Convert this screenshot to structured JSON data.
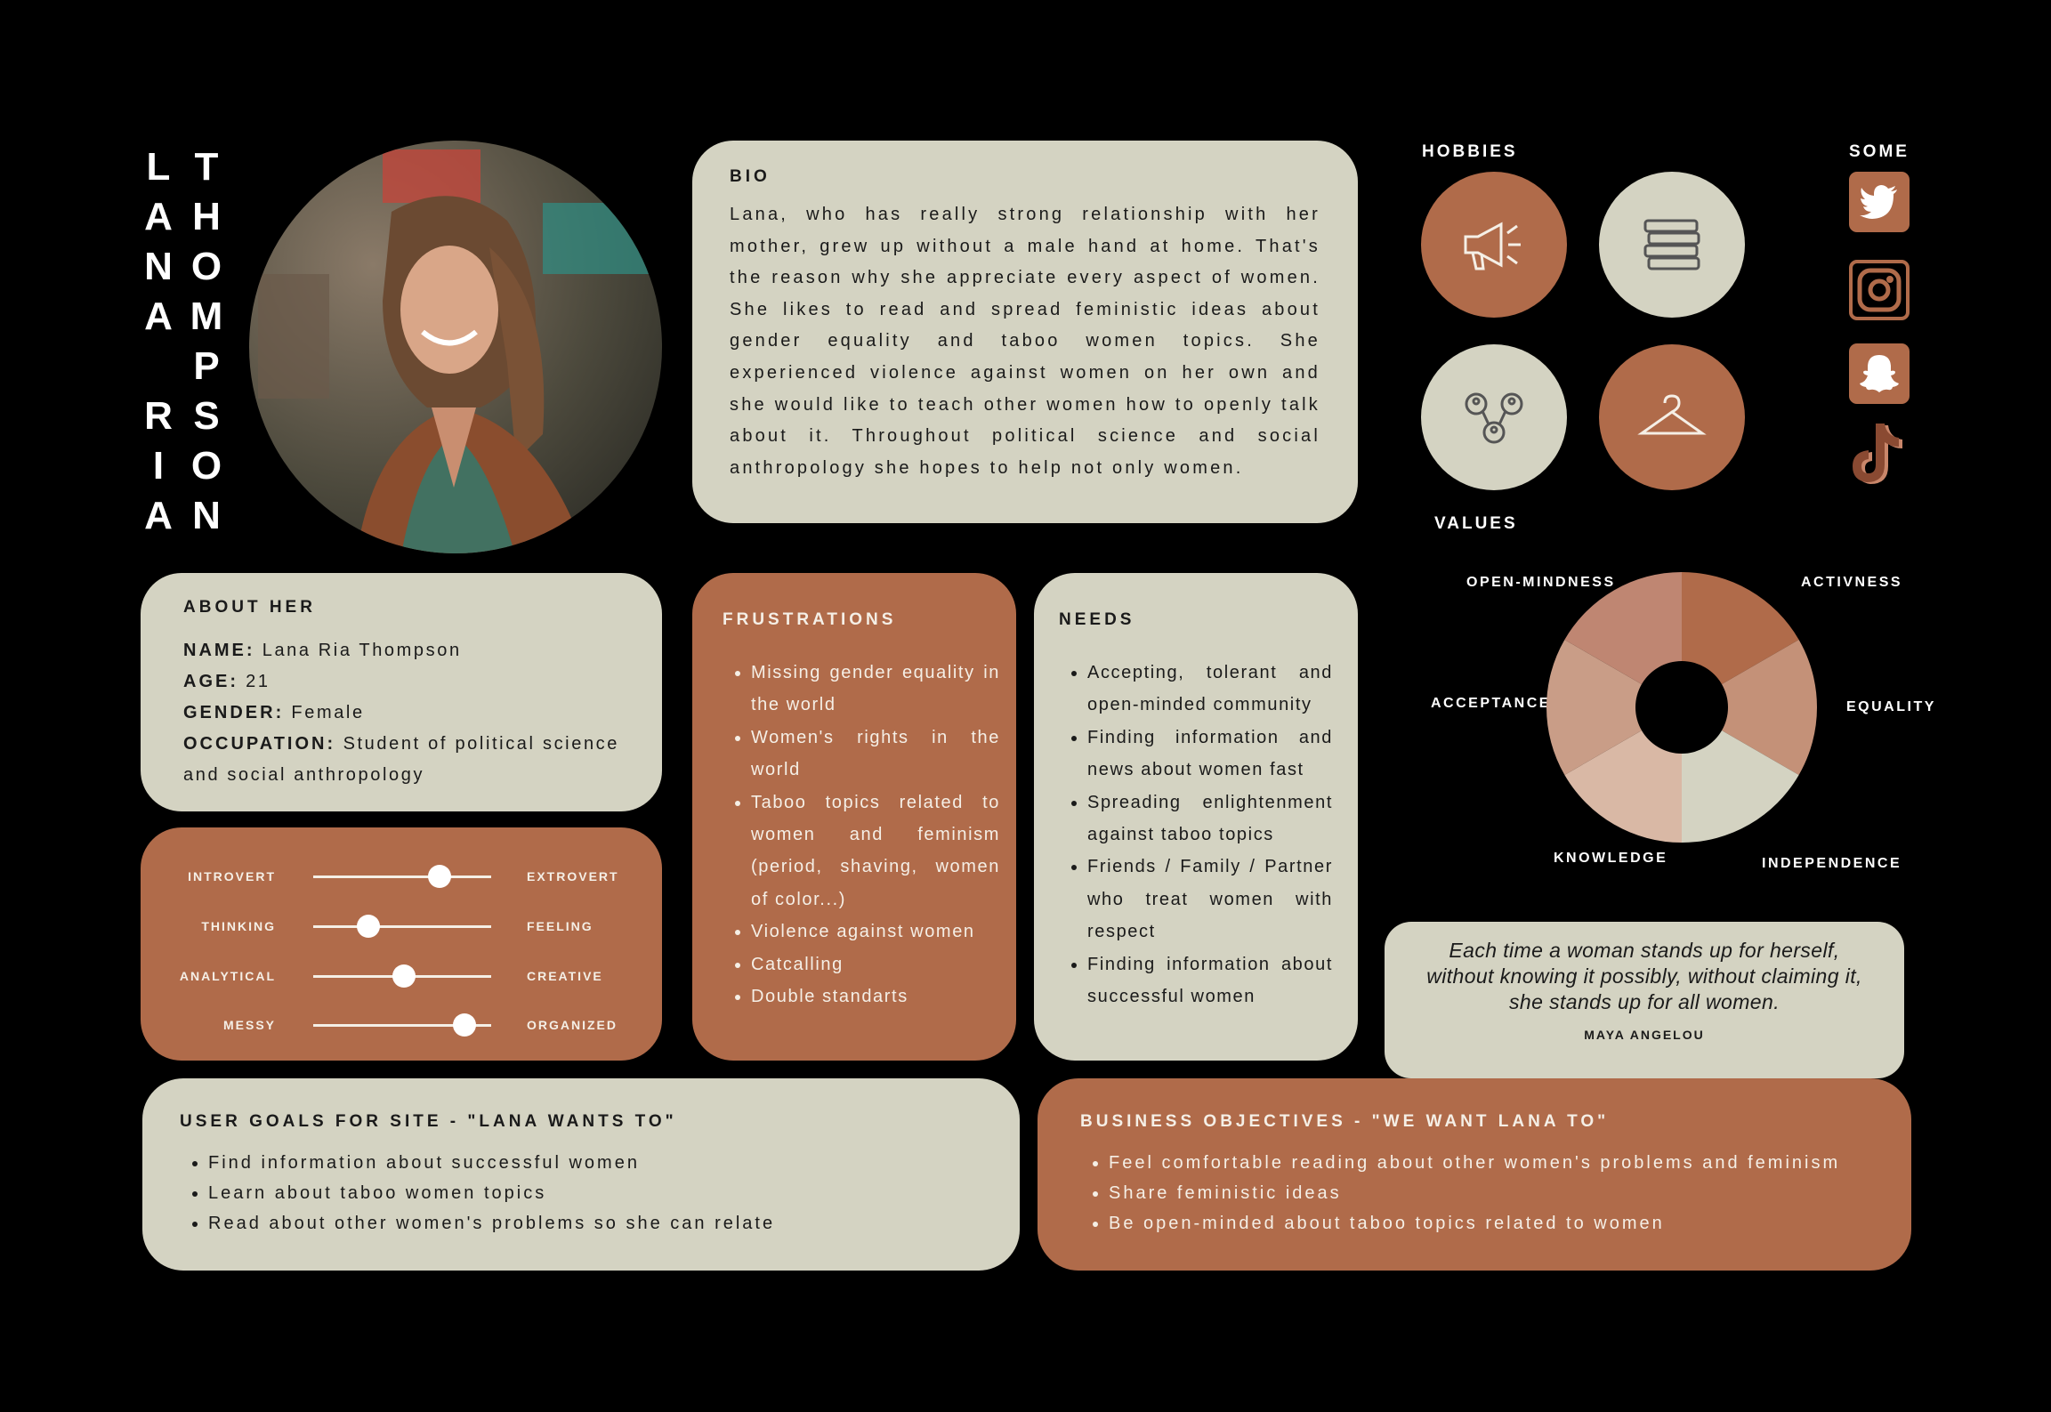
{
  "name": {
    "first": [
      "L",
      "A",
      "N",
      "A",
      "",
      "R",
      "I",
      "A"
    ],
    "last": [
      "T",
      "H",
      "O",
      "M",
      "P",
      "S",
      "O",
      "N"
    ]
  },
  "bio": {
    "title": "BIO",
    "text": "Lana, who has really strong relationship with her mother, grew up without a male hand at home. That's the reason why she appreciate every aspect of women. She likes to read and spread feministic ideas about gender equality and taboo women topics. She experienced violence against women on her own and she would like to teach other women how to openly talk about it. Throughout political science and social anthropology she hopes to help not only women."
  },
  "about": {
    "title": "ABOUT HER",
    "name_label": "NAME:",
    "name_value": "Lana Ria Thompson",
    "age_label": "AGE:",
    "age_value": "21",
    "gender_label": "GENDER:",
    "gender_value": "Female",
    "occupation_label": "OCCUPATION:",
    "occupation_value": "Student of political science and social anthropology"
  },
  "traits": [
    {
      "left": "INTROVERT",
      "right": "EXTROVERT",
      "value": 0.71
    },
    {
      "left": "THINKING",
      "right": "FEELING",
      "value": 0.31
    },
    {
      "left": "ANALYTICAL",
      "right": "CREATIVE",
      "value": 0.51
    },
    {
      "left": "MESSY",
      "right": "ORGANIZED",
      "value": 0.85
    }
  ],
  "frustrations": {
    "title": "FRUSTRATIONS",
    "items": [
      "Missing gender equality in the world",
      "Women's rights in the world",
      "Taboo topics related to women and feminism (period, shaving, women of color...)",
      "Violence against women",
      "Catcalling",
      "Double standarts"
    ]
  },
  "needs": {
    "title": "NEEDS",
    "items": [
      "Accepting, tolerant and open-minded community",
      "Finding information and news about women fast",
      "Spreading enlightenment against taboo topics",
      "Friends / Family / Partner who treat women with respect",
      "Finding information about successful women"
    ]
  },
  "hobbies": {
    "title": "HOBBIES",
    "icons": [
      "megaphone-icon",
      "books-icon",
      "network-icon",
      "hanger-icon"
    ]
  },
  "social": {
    "title": "SOME",
    "icons": [
      "twitter-icon",
      "instagram-icon",
      "snapchat-icon",
      "tiktok-icon"
    ]
  },
  "values": {
    "title": "VALUES",
    "labels": {
      "top_left": "OPEN-MINDNESS",
      "top_right": "ACTIVNESS",
      "left": "ACCEPTANCE",
      "right": "EQUALITY",
      "bottom_left": "KNOWLEDGE",
      "bottom_right": "INDEPENDENCE"
    },
    "colors": [
      "#b06b4a",
      "#c49178",
      "#d4d3c2",
      "#d9b8a5",
      "#c99d87",
      "#bf8672"
    ]
  },
  "quote": {
    "text_lines": [
      "Each time a woman stands up for herself,",
      "without knowing it possibly, without claiming it,",
      "she stands up for all women."
    ],
    "author": "MAYA ANGELOU"
  },
  "goals": {
    "title": "USER GOALS FOR SITE - \"LANA WANTS TO\"",
    "items": [
      "Find information about successful women",
      "Learn about taboo women topics",
      "Read about other women's problems so she can relate"
    ]
  },
  "business": {
    "title": "BUSINESS OBJECTIVES - \"WE WANT LANA TO\"",
    "items": [
      "Feel comfortable reading about other women's problems and feminism",
      "Share feministic ideas",
      "Be open-minded about taboo topics related to women"
    ]
  }
}
